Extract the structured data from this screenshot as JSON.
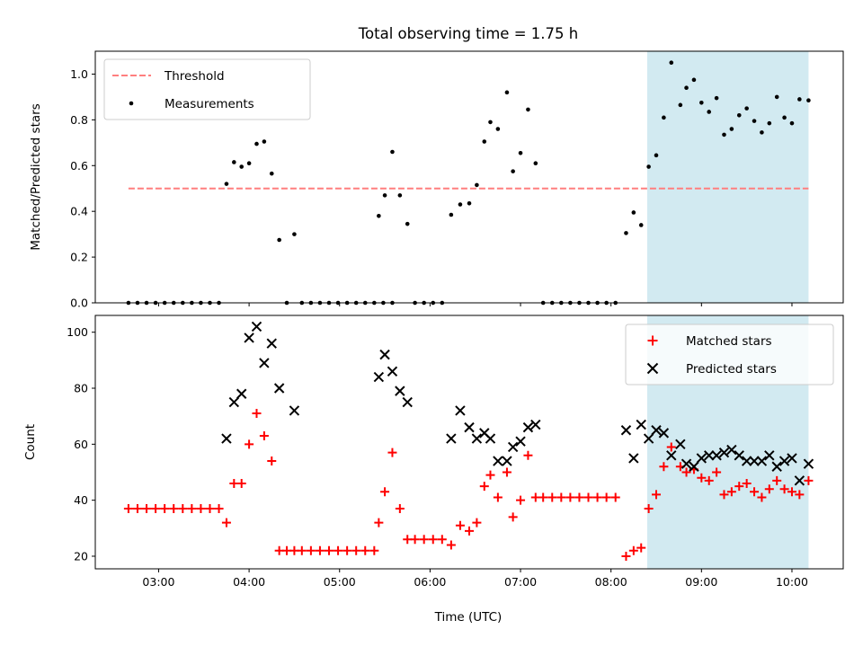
{
  "chart_data": [
    {
      "type": "scatter",
      "title": "Total observing time = 1.75 h",
      "xlabel": "",
      "ylabel": "Matched/Predicted stars",
      "ylim": [
        0,
        1.1
      ],
      "yticks": [
        "0.0",
        "0.2",
        "0.4",
        "0.6",
        "0.8",
        "1.0"
      ],
      "xlim": [
        "02:18",
        "10:34"
      ],
      "shaded_interval": {
        "start": "08:24",
        "end": "10:11",
        "color": "#add8e6"
      },
      "legend": {
        "placement": "top-left"
      },
      "threshold": {
        "name": "Threshold",
        "value": 0.5,
        "x_start": "02:40",
        "x_end": "10:11",
        "color": "#ff7f7f",
        "style": "dashed"
      },
      "series": [
        {
          "name": "Measurements",
          "color": "#000000",
          "marker": "dot",
          "points": [
            [
              "02:40",
              0.0
            ],
            [
              "02:46",
              0.0
            ],
            [
              "02:52",
              0.0
            ],
            [
              "02:58",
              0.0
            ],
            [
              "03:04",
              0.0
            ],
            [
              "03:10",
              0.0
            ],
            [
              "03:16",
              0.0
            ],
            [
              "03:22",
              0.0
            ],
            [
              "03:28",
              0.0
            ],
            [
              "03:34",
              0.0
            ],
            [
              "03:40",
              0.0
            ],
            [
              "03:45",
              0.52
            ],
            [
              "03:50",
              0.615
            ],
            [
              "03:55",
              0.595
            ],
            [
              "04:00",
              0.61
            ],
            [
              "04:05",
              0.695
            ],
            [
              "04:10",
              0.705
            ],
            [
              "04:15",
              0.565
            ],
            [
              "04:20",
              0.275
            ],
            [
              "04:25",
              0.0
            ],
            [
              "04:30",
              0.3
            ],
            [
              "04:35",
              0.0
            ],
            [
              "04:41",
              0.0
            ],
            [
              "04:47",
              0.0
            ],
            [
              "04:53",
              0.0
            ],
            [
              "04:59",
              0.0
            ],
            [
              "05:05",
              0.0
            ],
            [
              "05:11",
              0.0
            ],
            [
              "05:17",
              0.0
            ],
            [
              "05:23",
              0.0
            ],
            [
              "05:29",
              0.0
            ],
            [
              "05:35",
              0.0
            ],
            [
              "05:26",
              0.38
            ],
            [
              "05:30",
              0.47
            ],
            [
              "05:35",
              0.66
            ],
            [
              "05:40",
              0.47
            ],
            [
              "05:45",
              0.345
            ],
            [
              "05:50",
              0.0
            ],
            [
              "05:56",
              0.0
            ],
            [
              "06:02",
              0.0
            ],
            [
              "06:08",
              0.0
            ],
            [
              "06:14",
              0.385
            ],
            [
              "06:20",
              0.43
            ],
            [
              "06:26",
              0.435
            ],
            [
              "06:31",
              0.515
            ],
            [
              "06:36",
              0.705
            ],
            [
              "06:40",
              0.79
            ],
            [
              "06:45",
              0.76
            ],
            [
              "06:51",
              0.92
            ],
            [
              "06:55",
              0.575
            ],
            [
              "07:00",
              0.655
            ],
            [
              "07:05",
              0.845
            ],
            [
              "07:10",
              0.61
            ],
            [
              "07:15",
              0.0
            ],
            [
              "07:21",
              0.0
            ],
            [
              "07:27",
              0.0
            ],
            [
              "07:33",
              0.0
            ],
            [
              "07:39",
              0.0
            ],
            [
              "07:45",
              0.0
            ],
            [
              "07:51",
              0.0
            ],
            [
              "07:57",
              0.0
            ],
            [
              "08:03",
              0.0
            ],
            [
              "08:10",
              0.305
            ],
            [
              "08:15",
              0.395
            ],
            [
              "08:20",
              0.34
            ],
            [
              "08:25",
              0.595
            ],
            [
              "08:30",
              0.645
            ],
            [
              "08:35",
              0.81
            ],
            [
              "08:40",
              1.05
            ],
            [
              "08:46",
              0.865
            ],
            [
              "08:50",
              0.94
            ],
            [
              "08:55",
              0.975
            ],
            [
              "09:00",
              0.875
            ],
            [
              "09:05",
              0.835
            ],
            [
              "09:10",
              0.895
            ],
            [
              "09:15",
              0.735
            ],
            [
              "09:20",
              0.76
            ],
            [
              "09:25",
              0.82
            ],
            [
              "09:30",
              0.85
            ],
            [
              "09:35",
              0.795
            ],
            [
              "09:40",
              0.745
            ],
            [
              "09:45",
              0.785
            ],
            [
              "09:50",
              0.9
            ],
            [
              "09:55",
              0.81
            ],
            [
              "10:00",
              0.785
            ],
            [
              "10:05",
              0.89
            ],
            [
              "10:11",
              0.885
            ]
          ]
        }
      ]
    },
    {
      "type": "scatter",
      "title": "",
      "xlabel": "Time (UTC)",
      "ylabel": "Count",
      "ylim": [
        15.5,
        106
      ],
      "yticks": [
        "20",
        "40",
        "60",
        "80",
        "100"
      ],
      "xlim": [
        "02:18",
        "10:34"
      ],
      "xticks": [
        "03:00",
        "04:00",
        "05:00",
        "06:00",
        "07:00",
        "08:00",
        "09:00",
        "10:00"
      ],
      "shaded_interval": {
        "start": "08:24",
        "end": "10:11",
        "color": "#add8e6"
      },
      "legend": {
        "placement": "top-right"
      },
      "series": [
        {
          "name": "Matched stars",
          "color": "#ff0000",
          "marker": "plus",
          "points": [
            [
              "02:40",
              37
            ],
            [
              "02:46",
              37
            ],
            [
              "02:52",
              37
            ],
            [
              "02:58",
              37
            ],
            [
              "03:04",
              37
            ],
            [
              "03:10",
              37
            ],
            [
              "03:16",
              37
            ],
            [
              "03:22",
              37
            ],
            [
              "03:28",
              37
            ],
            [
              "03:34",
              37
            ],
            [
              "03:40",
              37
            ],
            [
              "03:45",
              32
            ],
            [
              "03:50",
              46
            ],
            [
              "03:55",
              46
            ],
            [
              "04:00",
              60
            ],
            [
              "04:05",
              71
            ],
            [
              "04:10",
              63
            ],
            [
              "04:15",
              54
            ],
            [
              "04:20",
              22
            ],
            [
              "04:25",
              22
            ],
            [
              "04:30",
              22
            ],
            [
              "04:35",
              22
            ],
            [
              "04:41",
              22
            ],
            [
              "04:47",
              22
            ],
            [
              "04:53",
              22
            ],
            [
              "04:59",
              22
            ],
            [
              "05:05",
              22
            ],
            [
              "05:11",
              22
            ],
            [
              "05:17",
              22
            ],
            [
              "05:23",
              22
            ],
            [
              "05:26",
              32
            ],
            [
              "05:30",
              43
            ],
            [
              "05:35",
              57
            ],
            [
              "05:40",
              37
            ],
            [
              "05:45",
              26
            ],
            [
              "05:50",
              26
            ],
            [
              "05:56",
              26
            ],
            [
              "06:02",
              26
            ],
            [
              "06:08",
              26
            ],
            [
              "06:14",
              24
            ],
            [
              "06:20",
              31
            ],
            [
              "06:26",
              29
            ],
            [
              "06:31",
              32
            ],
            [
              "06:36",
              45
            ],
            [
              "06:40",
              49
            ],
            [
              "06:45",
              41
            ],
            [
              "06:51",
              50
            ],
            [
              "06:55",
              34
            ],
            [
              "07:00",
              40
            ],
            [
              "07:05",
              56
            ],
            [
              "07:10",
              41
            ],
            [
              "07:15",
              41
            ],
            [
              "07:21",
              41
            ],
            [
              "07:27",
              41
            ],
            [
              "07:33",
              41
            ],
            [
              "07:39",
              41
            ],
            [
              "07:45",
              41
            ],
            [
              "07:51",
              41
            ],
            [
              "07:57",
              41
            ],
            [
              "08:03",
              41
            ],
            [
              "08:10",
              20
            ],
            [
              "08:15",
              22
            ],
            [
              "08:20",
              23
            ],
            [
              "08:25",
              37
            ],
            [
              "08:30",
              42
            ],
            [
              "08:35",
              52
            ],
            [
              "08:40",
              59
            ],
            [
              "08:46",
              52
            ],
            [
              "08:50",
              50
            ],
            [
              "08:55",
              51
            ],
            [
              "09:00",
              48
            ],
            [
              "09:05",
              47
            ],
            [
              "09:10",
              50
            ],
            [
              "09:15",
              42
            ],
            [
              "09:20",
              43
            ],
            [
              "09:25",
              45
            ],
            [
              "09:30",
              46
            ],
            [
              "09:35",
              43
            ],
            [
              "09:40",
              41
            ],
            [
              "09:45",
              44
            ],
            [
              "09:50",
              47
            ],
            [
              "09:55",
              44
            ],
            [
              "10:00",
              43
            ],
            [
              "10:05",
              42
            ],
            [
              "10:11",
              47
            ]
          ]
        },
        {
          "name": "Predicted stars",
          "color": "#000000",
          "marker": "x",
          "points": [
            [
              "03:45",
              62
            ],
            [
              "03:50",
              75
            ],
            [
              "03:55",
              78
            ],
            [
              "04:00",
              98
            ],
            [
              "04:05",
              102
            ],
            [
              "04:10",
              89
            ],
            [
              "04:15",
              96
            ],
            [
              "04:20",
              80
            ],
            [
              "04:30",
              72
            ],
            [
              "05:26",
              84
            ],
            [
              "05:30",
              92
            ],
            [
              "05:35",
              86
            ],
            [
              "05:40",
              79
            ],
            [
              "05:45",
              75
            ],
            [
              "06:14",
              62
            ],
            [
              "06:20",
              72
            ],
            [
              "06:26",
              66
            ],
            [
              "06:31",
              62
            ],
            [
              "06:36",
              64
            ],
            [
              "06:40",
              62
            ],
            [
              "06:45",
              54
            ],
            [
              "06:51",
              54
            ],
            [
              "06:55",
              59
            ],
            [
              "07:00",
              61
            ],
            [
              "07:05",
              66
            ],
            [
              "07:10",
              67
            ],
            [
              "08:10",
              65
            ],
            [
              "08:15",
              55
            ],
            [
              "08:20",
              67
            ],
            [
              "08:25",
              62
            ],
            [
              "08:30",
              65
            ],
            [
              "08:35",
              64
            ],
            [
              "08:40",
              56
            ],
            [
              "08:46",
              60
            ],
            [
              "08:50",
              53
            ],
            [
              "08:55",
              52
            ],
            [
              "09:00",
              55
            ],
            [
              "09:05",
              56
            ],
            [
              "09:10",
              56
            ],
            [
              "09:15",
              57
            ],
            [
              "09:20",
              58
            ],
            [
              "09:25",
              56
            ],
            [
              "09:30",
              54
            ],
            [
              "09:35",
              54
            ],
            [
              "09:40",
              54
            ],
            [
              "09:45",
              56
            ],
            [
              "09:50",
              52
            ],
            [
              "09:55",
              54
            ],
            [
              "10:00",
              55
            ],
            [
              "10:05",
              47
            ],
            [
              "10:11",
              53
            ]
          ]
        }
      ]
    }
  ]
}
